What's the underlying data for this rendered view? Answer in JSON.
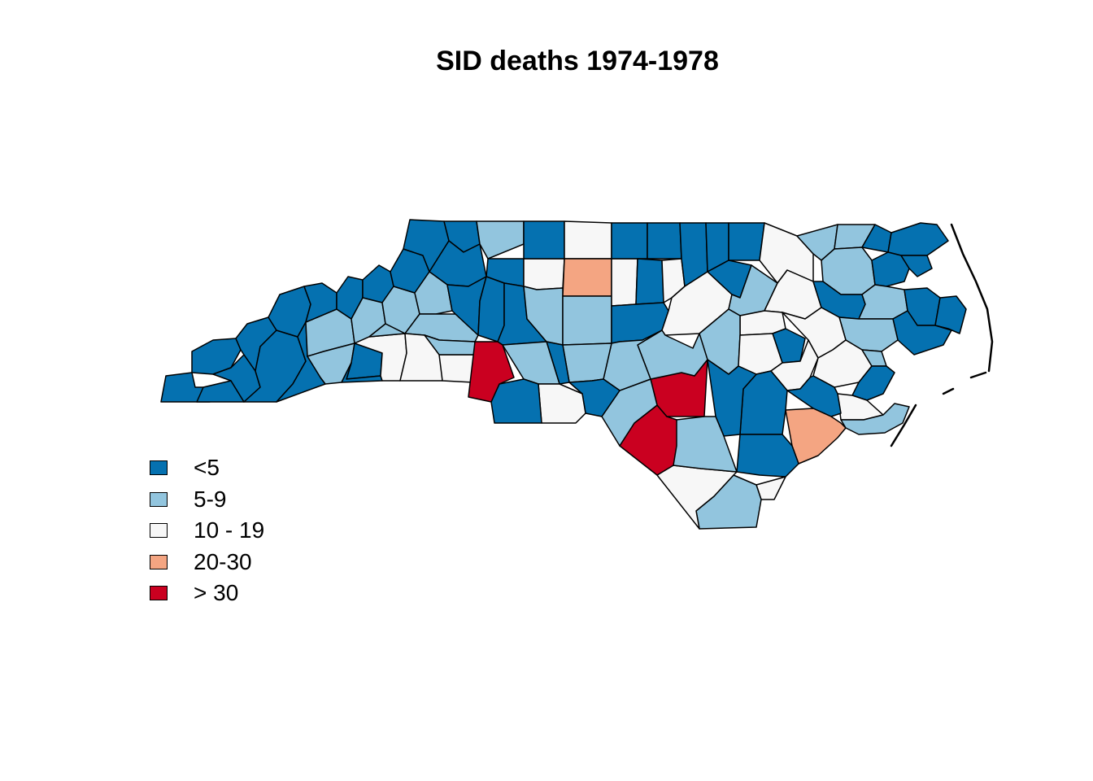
{
  "title": "SID deaths 1974-1978",
  "colors": {
    "lt5": "#0571b0",
    "5to9": "#92c5de",
    "10to19": "#f7f7f7",
    "20to30": "#f4a582",
    "gt30": "#ca0020",
    "border": "#000000"
  },
  "legend": [
    {
      "label": "<5",
      "class": "lt5"
    },
    {
      "label": "5-9",
      "class": "5to9"
    },
    {
      "label": "10 - 19",
      "class": "10to19"
    },
    {
      "label": "20-30",
      "class": "20to30"
    },
    {
      "label": "> 30",
      "class": "gt30"
    }
  ]
}
